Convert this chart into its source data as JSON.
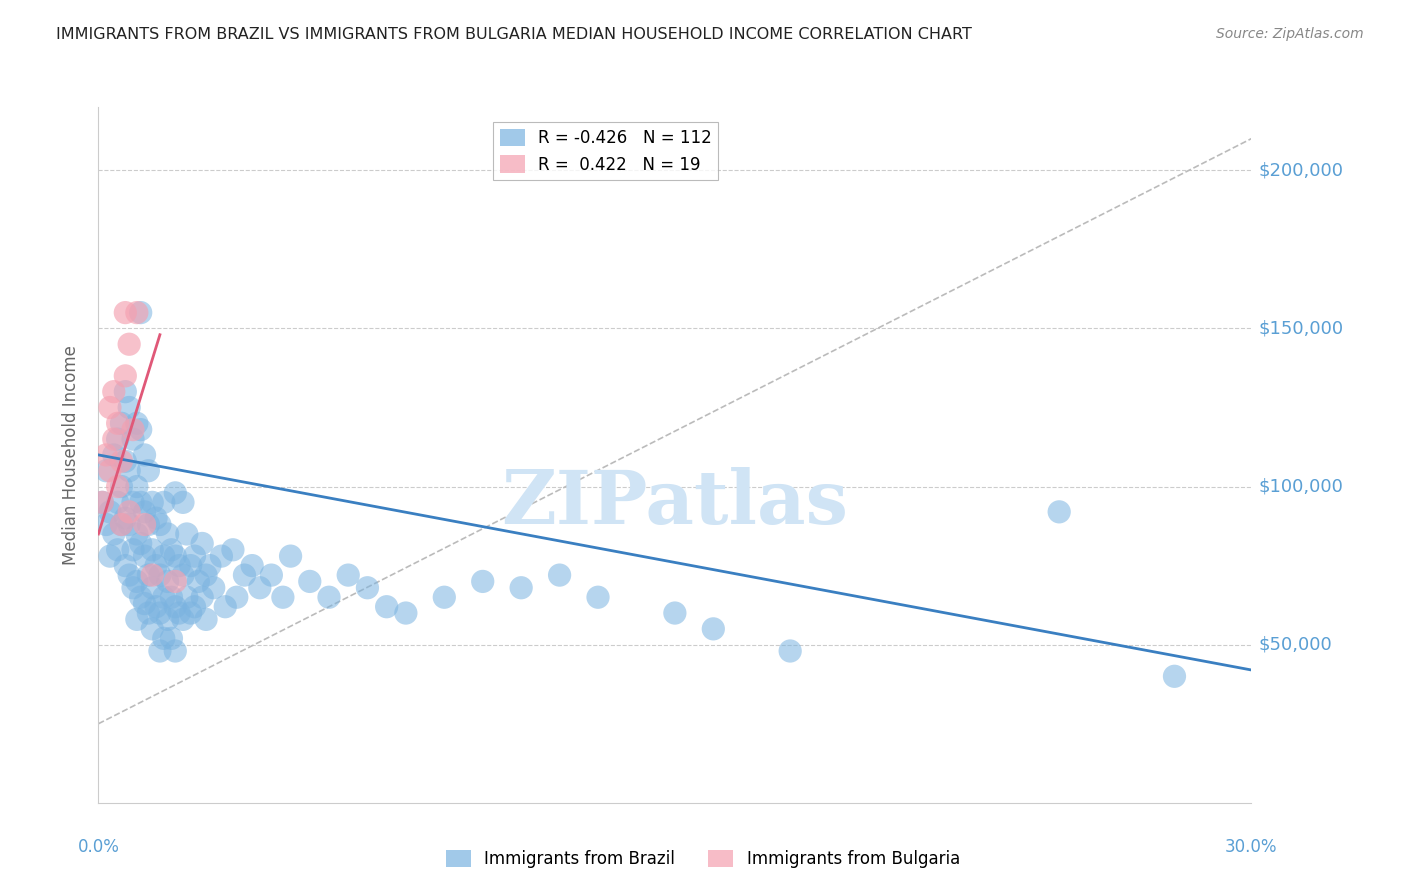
{
  "title": "IMMIGRANTS FROM BRAZIL VS IMMIGRANTS FROM BULGARIA MEDIAN HOUSEHOLD INCOME CORRELATION CHART",
  "source": "Source: ZipAtlas.com",
  "ylabel": "Median Household Income",
  "yticks": [
    0,
    50000,
    100000,
    150000,
    200000
  ],
  "ytick_labels": [
    "",
    "$50,000",
    "$100,000",
    "$150,000",
    "$200,000"
  ],
  "xmin": 0.0,
  "xmax": 0.3,
  "ymin": 0,
  "ymax": 220000,
  "brazil_color": "#7ab3e0",
  "bulgaria_color": "#f4a0b0",
  "brazil_R": -0.426,
  "brazil_N": 112,
  "bulgaria_R": 0.422,
  "bulgaria_N": 19,
  "brazil_label": "Immigrants from Brazil",
  "bulgaria_label": "Immigrants from Bulgaria",
  "watermark": "ZIPatlas",
  "brazil_points": [
    [
      0.001,
      95000
    ],
    [
      0.002,
      88000
    ],
    [
      0.002,
      105000
    ],
    [
      0.003,
      92000
    ],
    [
      0.003,
      78000
    ],
    [
      0.004,
      110000
    ],
    [
      0.004,
      85000
    ],
    [
      0.005,
      115000
    ],
    [
      0.005,
      95000
    ],
    [
      0.005,
      80000
    ],
    [
      0.006,
      120000
    ],
    [
      0.006,
      100000
    ],
    [
      0.006,
      88000
    ],
    [
      0.007,
      130000
    ],
    [
      0.007,
      108000
    ],
    [
      0.007,
      90000
    ],
    [
      0.007,
      75000
    ],
    [
      0.008,
      125000
    ],
    [
      0.008,
      105000
    ],
    [
      0.008,
      88000
    ],
    [
      0.008,
      72000
    ],
    [
      0.009,
      115000
    ],
    [
      0.009,
      95000
    ],
    [
      0.009,
      80000
    ],
    [
      0.009,
      68000
    ],
    [
      0.01,
      120000
    ],
    [
      0.01,
      100000
    ],
    [
      0.01,
      85000
    ],
    [
      0.01,
      70000
    ],
    [
      0.01,
      58000
    ],
    [
      0.011,
      155000
    ],
    [
      0.011,
      118000
    ],
    [
      0.011,
      95000
    ],
    [
      0.011,
      82000
    ],
    [
      0.011,
      65000
    ],
    [
      0.012,
      110000
    ],
    [
      0.012,
      92000
    ],
    [
      0.012,
      78000
    ],
    [
      0.012,
      63000
    ],
    [
      0.013,
      105000
    ],
    [
      0.013,
      88000
    ],
    [
      0.013,
      72000
    ],
    [
      0.013,
      60000
    ],
    [
      0.014,
      95000
    ],
    [
      0.014,
      80000
    ],
    [
      0.014,
      68000
    ],
    [
      0.014,
      55000
    ],
    [
      0.015,
      90000
    ],
    [
      0.015,
      75000
    ],
    [
      0.015,
      62000
    ],
    [
      0.016,
      88000
    ],
    [
      0.016,
      72000
    ],
    [
      0.016,
      60000
    ],
    [
      0.016,
      48000
    ],
    [
      0.017,
      95000
    ],
    [
      0.017,
      78000
    ],
    [
      0.017,
      65000
    ],
    [
      0.017,
      52000
    ],
    [
      0.018,
      85000
    ],
    [
      0.018,
      70000
    ],
    [
      0.018,
      58000
    ],
    [
      0.019,
      80000
    ],
    [
      0.019,
      65000
    ],
    [
      0.019,
      52000
    ],
    [
      0.02,
      98000
    ],
    [
      0.02,
      78000
    ],
    [
      0.02,
      62000
    ],
    [
      0.02,
      48000
    ],
    [
      0.021,
      75000
    ],
    [
      0.021,
      60000
    ],
    [
      0.022,
      95000
    ],
    [
      0.022,
      72000
    ],
    [
      0.022,
      58000
    ],
    [
      0.023,
      85000
    ],
    [
      0.023,
      65000
    ],
    [
      0.024,
      75000
    ],
    [
      0.024,
      60000
    ],
    [
      0.025,
      78000
    ],
    [
      0.025,
      62000
    ],
    [
      0.026,
      70000
    ],
    [
      0.027,
      82000
    ],
    [
      0.027,
      65000
    ],
    [
      0.028,
      72000
    ],
    [
      0.028,
      58000
    ],
    [
      0.029,
      75000
    ],
    [
      0.03,
      68000
    ],
    [
      0.032,
      78000
    ],
    [
      0.033,
      62000
    ],
    [
      0.035,
      80000
    ],
    [
      0.036,
      65000
    ],
    [
      0.038,
      72000
    ],
    [
      0.04,
      75000
    ],
    [
      0.042,
      68000
    ],
    [
      0.045,
      72000
    ],
    [
      0.048,
      65000
    ],
    [
      0.05,
      78000
    ],
    [
      0.055,
      70000
    ],
    [
      0.06,
      65000
    ],
    [
      0.065,
      72000
    ],
    [
      0.07,
      68000
    ],
    [
      0.075,
      62000
    ],
    [
      0.08,
      60000
    ],
    [
      0.09,
      65000
    ],
    [
      0.1,
      70000
    ],
    [
      0.11,
      68000
    ],
    [
      0.12,
      72000
    ],
    [
      0.13,
      65000
    ],
    [
      0.15,
      60000
    ],
    [
      0.16,
      55000
    ],
    [
      0.18,
      48000
    ],
    [
      0.25,
      92000
    ],
    [
      0.28,
      40000
    ]
  ],
  "bulgaria_points": [
    [
      0.001,
      95000
    ],
    [
      0.002,
      110000
    ],
    [
      0.003,
      125000
    ],
    [
      0.003,
      105000
    ],
    [
      0.004,
      130000
    ],
    [
      0.004,
      115000
    ],
    [
      0.005,
      120000
    ],
    [
      0.005,
      100000
    ],
    [
      0.006,
      108000
    ],
    [
      0.006,
      88000
    ],
    [
      0.007,
      155000
    ],
    [
      0.007,
      135000
    ],
    [
      0.008,
      145000
    ],
    [
      0.008,
      92000
    ],
    [
      0.009,
      118000
    ],
    [
      0.01,
      155000
    ],
    [
      0.012,
      88000
    ],
    [
      0.014,
      72000
    ],
    [
      0.02,
      70000
    ]
  ],
  "brazil_line": {
    "x0": 0.0,
    "y0": 110000,
    "x1": 0.3,
    "y1": 42000
  },
  "bulgaria_line": {
    "x0": 0.0,
    "y0": 85000,
    "x1": 0.016,
    "y1": 148000
  },
  "diag_line": {
    "x0": 0.0,
    "y0": 25000,
    "x1": 0.3,
    "y1": 210000
  },
  "title_color": "#222222",
  "axis_color": "#5a9fd4",
  "grid_color": "#cccccc",
  "watermark_color": "#d0e4f5",
  "ylabel_color": "#666666"
}
